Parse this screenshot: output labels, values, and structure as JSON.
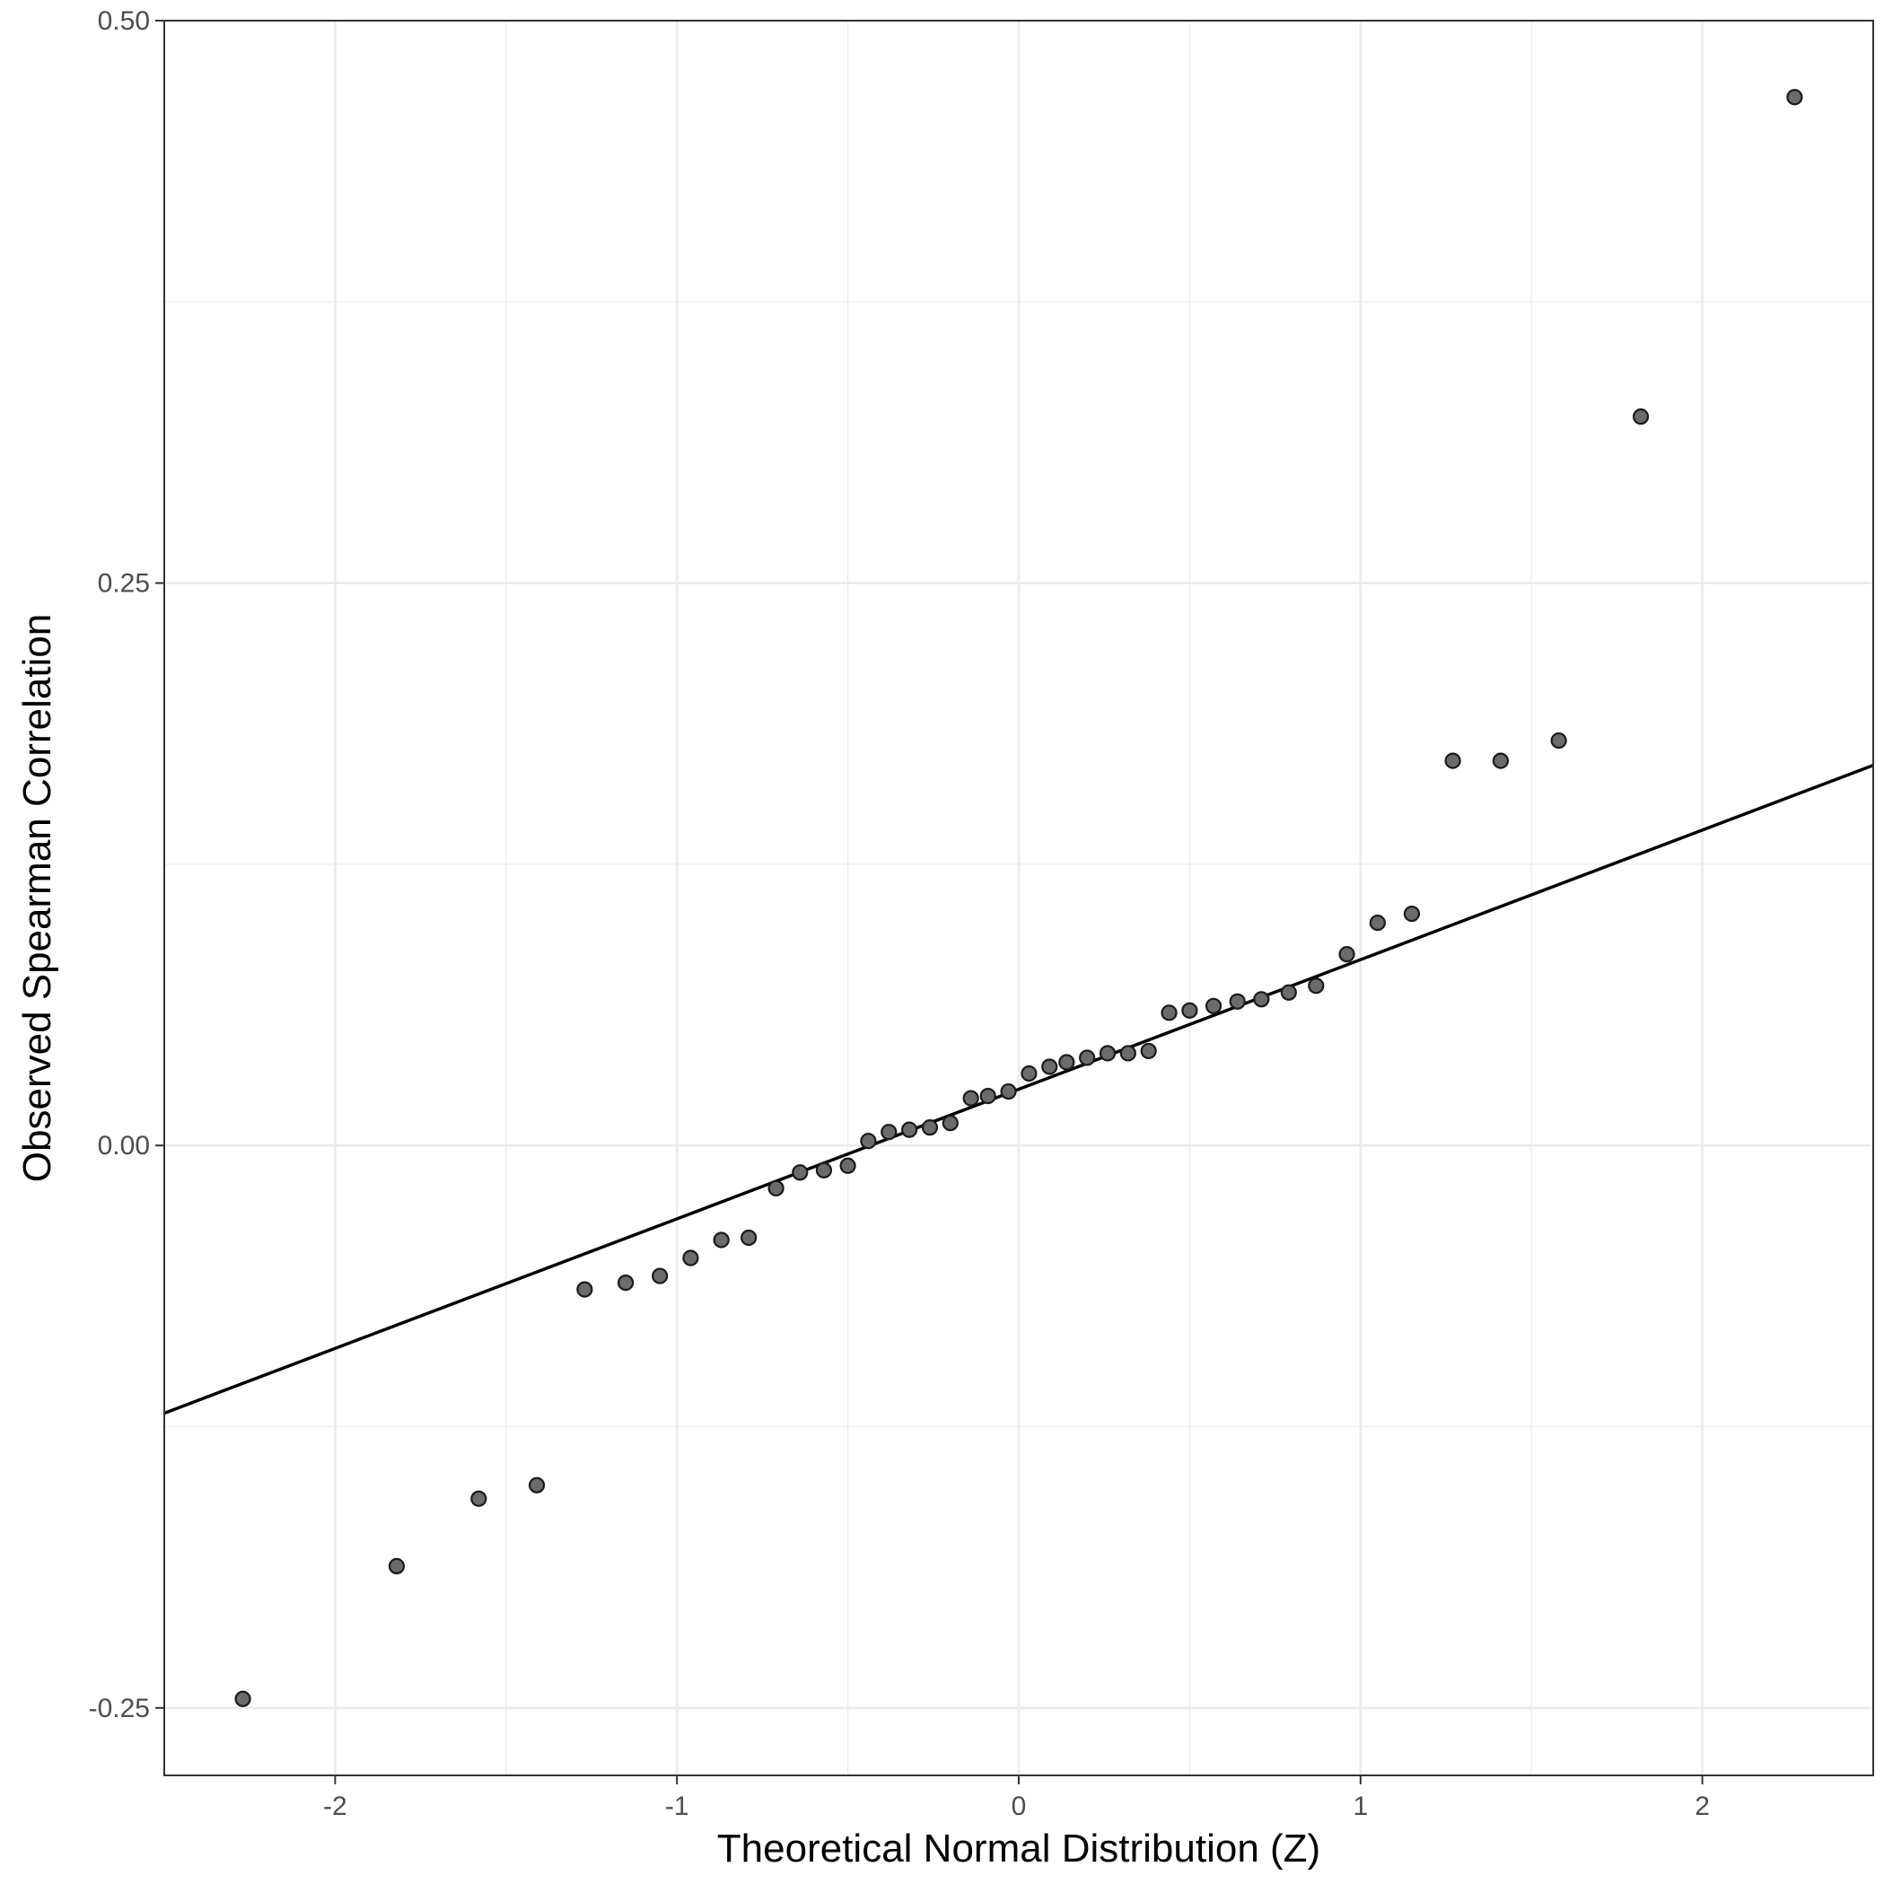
{
  "chart_data": {
    "type": "scatter",
    "title": "",
    "xlabel": "Theoretical Normal Distribution (Z)",
    "ylabel": "Observed Spearman Correlation",
    "xlim": [
      -2.5,
      2.5
    ],
    "ylim": [
      -0.28,
      0.5
    ],
    "x_ticks": [
      -2,
      -1,
      0,
      1,
      2
    ],
    "x_tick_labels": [
      "-2",
      "-1",
      "0",
      "1",
      "2"
    ],
    "y_ticks": [
      -0.25,
      0,
      0.25,
      0.5
    ],
    "y_tick_labels": [
      "-0.25",
      "0.00",
      "0.25",
      "0.50"
    ],
    "grid": true,
    "legend": "none",
    "reference_line": {
      "type": "qq-line",
      "x": [
        -2.5,
        2.5
      ],
      "y": [
        -0.119,
        0.169
      ]
    },
    "points": [
      {
        "x": -2.27,
        "y": -0.246
      },
      {
        "x": -1.82,
        "y": -0.187
      },
      {
        "x": -1.58,
        "y": -0.157
      },
      {
        "x": -1.41,
        "y": -0.151
      },
      {
        "x": -1.27,
        "y": -0.064
      },
      {
        "x": -1.15,
        "y": -0.061
      },
      {
        "x": -1.05,
        "y": -0.058
      },
      {
        "x": -0.96,
        "y": -0.05
      },
      {
        "x": -0.87,
        "y": -0.042
      },
      {
        "x": -0.79,
        "y": -0.041
      },
      {
        "x": -0.71,
        "y": -0.019
      },
      {
        "x": -0.64,
        "y": -0.012
      },
      {
        "x": -0.57,
        "y": -0.011
      },
      {
        "x": -0.5,
        "y": -0.009
      },
      {
        "x": -0.44,
        "y": 0.002
      },
      {
        "x": -0.38,
        "y": 0.006
      },
      {
        "x": -0.32,
        "y": 0.007
      },
      {
        "x": -0.26,
        "y": 0.008
      },
      {
        "x": -0.2,
        "y": 0.01
      },
      {
        "x": -0.14,
        "y": 0.021
      },
      {
        "x": -0.09,
        "y": 0.022
      },
      {
        "x": -0.03,
        "y": 0.024
      },
      {
        "x": 0.03,
        "y": 0.032
      },
      {
        "x": 0.09,
        "y": 0.035
      },
      {
        "x": 0.14,
        "y": 0.037
      },
      {
        "x": 0.2,
        "y": 0.039
      },
      {
        "x": 0.26,
        "y": 0.041
      },
      {
        "x": 0.32,
        "y": 0.041
      },
      {
        "x": 0.38,
        "y": 0.042
      },
      {
        "x": 0.44,
        "y": 0.059
      },
      {
        "x": 0.5,
        "y": 0.06
      },
      {
        "x": 0.57,
        "y": 0.062
      },
      {
        "x": 0.64,
        "y": 0.064
      },
      {
        "x": 0.71,
        "y": 0.065
      },
      {
        "x": 0.79,
        "y": 0.068
      },
      {
        "x": 0.87,
        "y": 0.071
      },
      {
        "x": 0.96,
        "y": 0.085
      },
      {
        "x": 1.05,
        "y": 0.099
      },
      {
        "x": 1.15,
        "y": 0.103
      },
      {
        "x": 1.27,
        "y": 0.171
      },
      {
        "x": 1.41,
        "y": 0.171
      },
      {
        "x": 1.58,
        "y": 0.18
      },
      {
        "x": 1.82,
        "y": 0.324
      },
      {
        "x": 2.27,
        "y": 0.466
      }
    ]
  }
}
